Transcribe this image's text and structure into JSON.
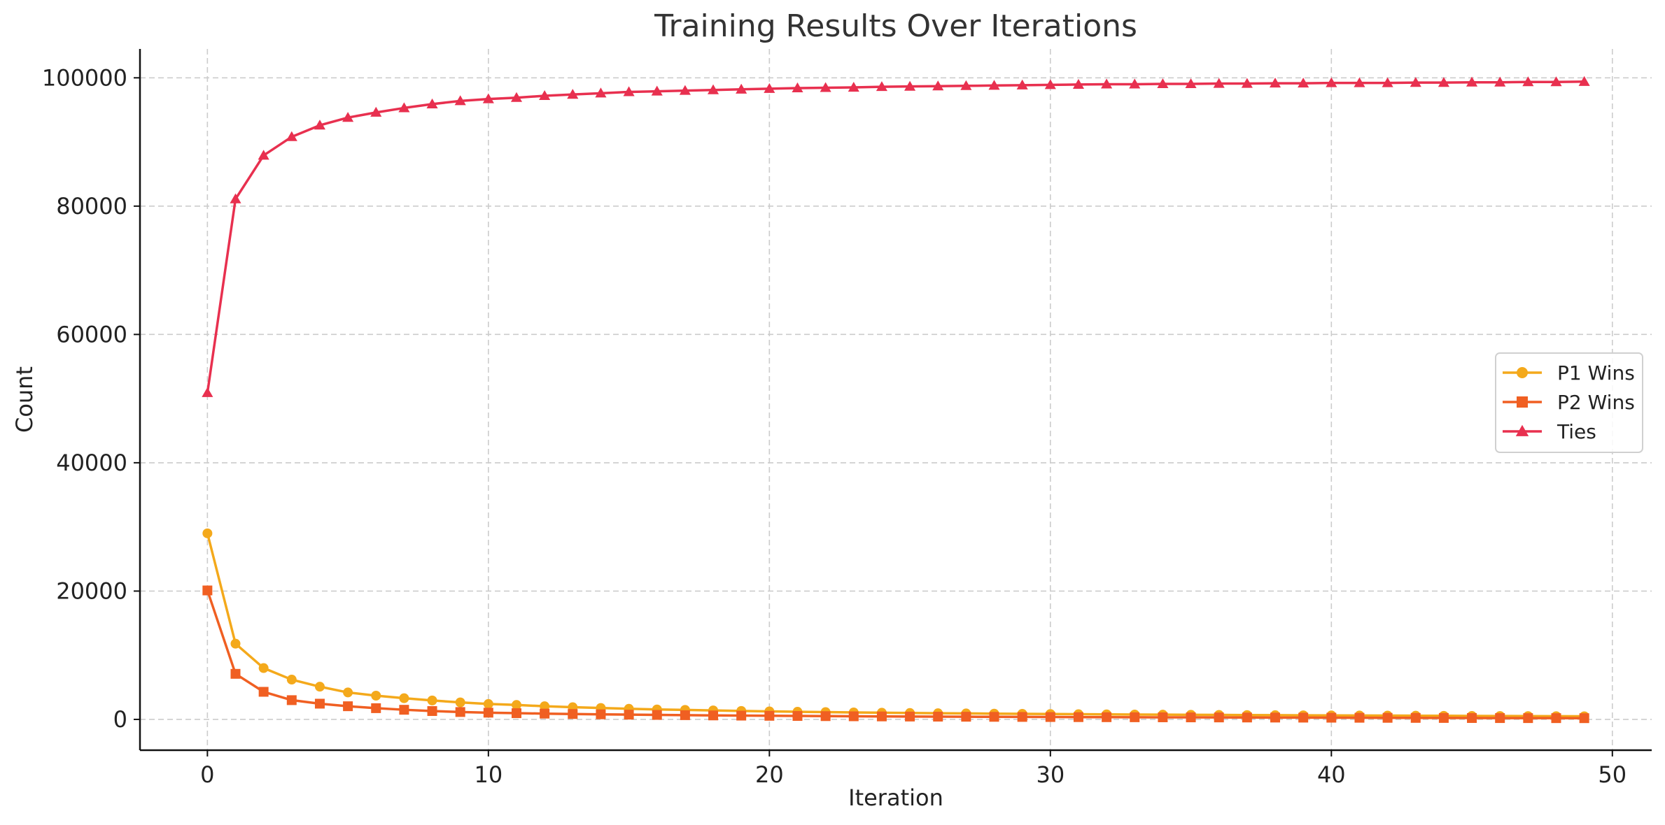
{
  "chart_data": {
    "type": "line",
    "title": "Training Results Over Iterations",
    "xlabel": "Iteration",
    "ylabel": "Count",
    "xlim": [
      -2.4,
      51.4
    ],
    "ylim": [
      -4800,
      104500
    ],
    "xticks": [
      0,
      10,
      20,
      30,
      40,
      50
    ],
    "yticks": [
      0,
      20000,
      40000,
      60000,
      80000,
      100000
    ],
    "grid": true,
    "grid_style": "dashed",
    "legend_position": "right",
    "x": [
      0,
      1,
      2,
      3,
      4,
      5,
      6,
      7,
      8,
      9,
      10,
      11,
      12,
      13,
      14,
      15,
      16,
      17,
      18,
      19,
      20,
      21,
      22,
      23,
      24,
      25,
      26,
      27,
      28,
      29,
      30,
      31,
      32,
      33,
      34,
      35,
      36,
      37,
      38,
      39,
      40,
      41,
      42,
      43,
      44,
      45,
      46,
      47,
      48,
      49
    ],
    "series": [
      {
        "name": "P1 Wins",
        "color": "#f4a91b",
        "marker": "circle",
        "values": [
          29000,
          11800,
          8000,
          6200,
          5100,
          4200,
          3700,
          3300,
          2950,
          2650,
          2400,
          2250,
          2050,
          1900,
          1780,
          1650,
          1550,
          1480,
          1400,
          1320,
          1250,
          1190,
          1140,
          1090,
          1040,
          1000,
          960,
          930,
          900,
          870,
          840,
          810,
          785,
          760,
          740,
          720,
          700,
          680,
          660,
          640,
          620,
          605,
          590,
          575,
          560,
          545,
          530,
          515,
          500,
          490
        ]
      },
      {
        "name": "P2 Wins",
        "color": "#f05f22",
        "marker": "square",
        "values": [
          20100,
          7100,
          4300,
          3000,
          2450,
          2050,
          1750,
          1500,
          1300,
          1150,
          1050,
          970,
          900,
          840,
          790,
          740,
          700,
          660,
          620,
          590,
          560,
          535,
          510,
          485,
          465,
          445,
          430,
          415,
          400,
          385,
          370,
          355,
          345,
          335,
          325,
          315,
          305,
          295,
          285,
          275,
          265,
          255,
          245,
          235,
          225,
          215,
          205,
          200,
          195,
          190
        ]
      },
      {
        "name": "Ties",
        "color": "#e8304f",
        "marker": "triangle",
        "values": [
          50900,
          81100,
          87900,
          90800,
          92600,
          93800,
          94600,
          95300,
          95900,
          96400,
          96700,
          96900,
          97200,
          97400,
          97600,
          97800,
          97900,
          98000,
          98100,
          98200,
          98300,
          98400,
          98450,
          98500,
          98600,
          98650,
          98700,
          98750,
          98800,
          98850,
          98900,
          98950,
          99000,
          99000,
          99050,
          99050,
          99100,
          99100,
          99150,
          99150,
          99200,
          99200,
          99200,
          99250,
          99250,
          99300,
          99300,
          99350,
          99350,
          99400
        ]
      }
    ]
  }
}
